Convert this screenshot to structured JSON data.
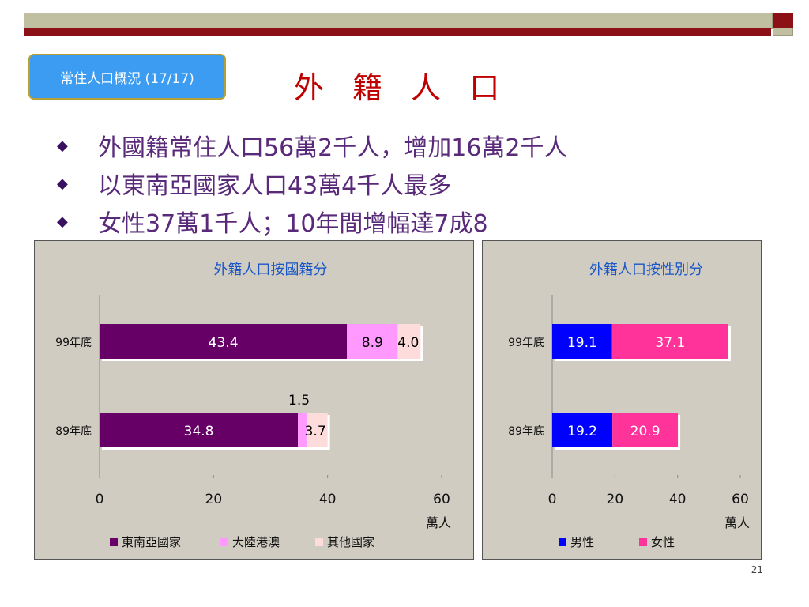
{
  "slide": {
    "badge": "常住人口概況 (17/17)",
    "title": "外 籍 人 口",
    "bullets": [
      "外國籍常住人口56萬2千人，增加16萬2千人",
      "以東南亞國家人口43萬4千人最多",
      "女性37萬1千人；10年間增幅達7成8"
    ],
    "page_number": "21",
    "colors": {
      "accent": "#c00000",
      "badge_bg": "#3b9cf1",
      "bullet_text": "#5a2a7a",
      "top_bar": "#8b1116"
    }
  },
  "chart_data": [
    {
      "type": "bar",
      "orientation": "horizontal",
      "stacked": true,
      "title": "外籍人口按國籍分",
      "categories": [
        "99年底",
        "89年底"
      ],
      "series": [
        {
          "name": "東南亞國家",
          "values": [
            43.4,
            34.8
          ],
          "color": "#660066",
          "label_color": "#ffffff"
        },
        {
          "name": "大陸港澳",
          "values": [
            8.9,
            1.5
          ],
          "color": "#ff99ff",
          "label_color": "#000000"
        },
        {
          "name": "其他國家",
          "values": [
            4.0,
            3.7
          ],
          "color": "#ffdcdc",
          "label_color": "#000000"
        }
      ],
      "xlim": [
        0,
        60
      ],
      "xticks": [
        0,
        20,
        40,
        60
      ],
      "unit": "萬人",
      "grid": false,
      "legend": "bottom"
    },
    {
      "type": "bar",
      "orientation": "horizontal",
      "stacked": true,
      "title": "外籍人口按性別分",
      "categories": [
        "99年底",
        "89年底"
      ],
      "series": [
        {
          "name": "男性",
          "values": [
            19.1,
            19.2
          ],
          "color": "#0000ff",
          "label_color": "#ffffff"
        },
        {
          "name": "女性",
          "values": [
            37.1,
            20.9
          ],
          "color": "#ff3399",
          "label_color": "#ffffff"
        }
      ],
      "xlim": [
        0,
        60
      ],
      "xticks": [
        0,
        20,
        40,
        60
      ],
      "unit": "萬人",
      "grid": false,
      "legend": "bottom"
    }
  ]
}
